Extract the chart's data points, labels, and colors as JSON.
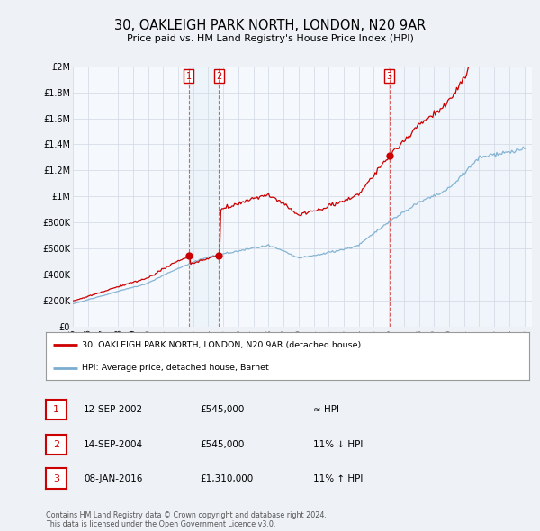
{
  "title": "30, OAKLEIGH PARK NORTH, LONDON, N20 9AR",
  "subtitle": "Price paid vs. HM Land Registry's House Price Index (HPI)",
  "footer": "Contains HM Land Registry data © Crown copyright and database right 2024.\nThis data is licensed under the Open Government Licence v3.0.",
  "legend_line1": "30, OAKLEIGH PARK NORTH, LONDON, N20 9AR (detached house)",
  "legend_line2": "HPI: Average price, detached house, Barnet",
  "transactions": [
    {
      "num": 1,
      "date": "12-SEP-2002",
      "price": "£545,000",
      "hpi": "≈ HPI"
    },
    {
      "num": 2,
      "date": "14-SEP-2004",
      "price": "£545,000",
      "hpi": "11% ↓ HPI"
    },
    {
      "num": 3,
      "date": "08-JAN-2016",
      "price": "£1,310,000",
      "hpi": "11% ↑ HPI"
    }
  ],
  "transaction_years": [
    2002.71,
    2004.71,
    2016.04
  ],
  "transaction_prices": [
    545000,
    545000,
    1310000
  ],
  "ylim": [
    0,
    2000000
  ],
  "yticks": [
    0,
    200000,
    400000,
    600000,
    800000,
    1000000,
    1200000,
    1400000,
    1600000,
    1800000,
    2000000
  ],
  "ytick_labels": [
    "£0",
    "£200K",
    "£400K",
    "£600K",
    "£800K",
    "£1M",
    "£1.2M",
    "£1.4M",
    "£1.6M",
    "£1.8M",
    "£2M"
  ],
  "red_line_color": "#cc0000",
  "blue_line_color": "#7aadcf",
  "fill_color": "#cce0f0",
  "bg_color": "#eef2f7",
  "plot_bg_color": "#f5f8fc",
  "grid_color": "#d0d8e4",
  "vline_color": "#cc0000",
  "marker_box_color": "#cc0000",
  "shade_between_tx": true,
  "shade_color": "#d8eaf8"
}
